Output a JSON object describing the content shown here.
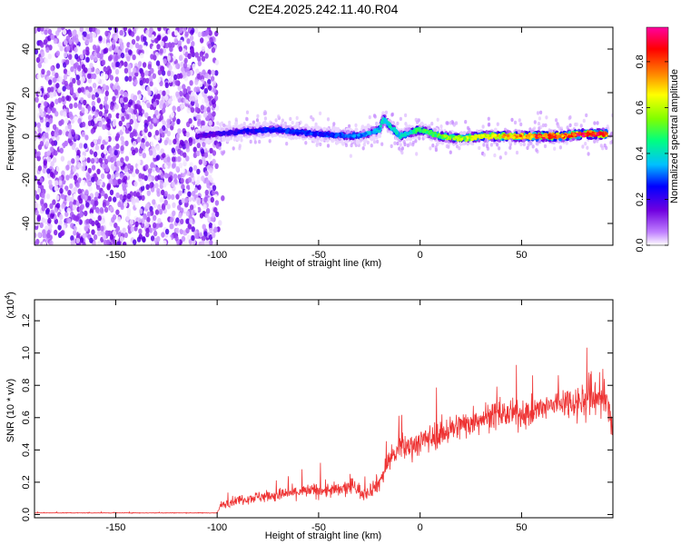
{
  "title": "C2E4.2025.242.11.40.R04",
  "chart_data": [
    {
      "type": "heatmap",
      "title": "C2E4.2025.242.11.40.R04",
      "xlabel": "Height of straight line (km)",
      "ylabel": "Frequency (Hz)",
      "xlim": [
        -190,
        95
      ],
      "ylim": [
        -50,
        50
      ],
      "xticks": [
        -150,
        -100,
        -50,
        0,
        50
      ],
      "yticks": [
        -40,
        -20,
        0,
        20,
        40
      ],
      "description_series": [
        {
          "name": "noise region",
          "x_range": [
            -190,
            -100
          ],
          "freq_range": [
            -50,
            50
          ],
          "amplitude": 0.2
        },
        {
          "name": "signal ridge",
          "x": [
            -110,
            -90,
            -70,
            -50,
            -30,
            -20,
            -18,
            -10,
            0,
            10,
            20,
            30,
            40,
            50,
            60,
            70,
            80,
            92
          ],
          "freq": [
            0,
            2,
            3,
            1,
            0,
            3,
            8,
            0,
            3,
            0,
            -1,
            0,
            0,
            0,
            0,
            0,
            1,
            1
          ],
          "amplitude": [
            0.2,
            0.25,
            0.3,
            0.3,
            0.35,
            0.4,
            0.45,
            0.4,
            0.5,
            0.55,
            0.6,
            0.65,
            0.7,
            0.75,
            0.85,
            0.8,
            0.9,
            0.8
          ]
        }
      ],
      "colorbar": {
        "label": "Normalized spectral amplitude",
        "range": [
          0.0,
          0.95
        ],
        "ticks": [
          "0.0",
          "0.2",
          "0.4",
          "0.6",
          "0.8"
        ],
        "tick_values": [
          0.0,
          0.2,
          0.4,
          0.6,
          0.8
        ],
        "colors": [
          "#ffffff",
          "#c080ff",
          "#7000e0",
          "#0000ff",
          "#00c0ff",
          "#00ff80",
          "#80ff00",
          "#ffff00",
          "#ff8000",
          "#ff0000",
          "#ff00a0"
        ]
      }
    },
    {
      "type": "line",
      "xlabel": "Height of straight line (km)",
      "ylabel": "SNR (10 * v/v)",
      "multiplier": "(x10",
      "multiplier_exp": "4",
      "multiplier_close": ")",
      "xlim": [
        -190,
        95
      ],
      "ylim": [
        -0.02,
        1.33
      ],
      "xticks": [
        -150,
        -100,
        -50,
        0,
        50
      ],
      "yticks": [
        0.0,
        0.2,
        0.4,
        0.6,
        0.8,
        1.0,
        1.2
      ],
      "ytick_labels": [
        "0.0",
        "0.2",
        "0.4",
        "0.6",
        "0.8",
        "1.0",
        "1.2"
      ],
      "series": [
        {
          "name": "SNR",
          "color": "#ee3333",
          "x": [
            -190,
            -100,
            -98,
            -90,
            -80,
            -70,
            -60,
            -50,
            -40,
            -32,
            -28,
            -20,
            -15,
            -10,
            0,
            10,
            20,
            30,
            40,
            50,
            60,
            70,
            80,
            88,
            95
          ],
          "y": [
            0.01,
            0.01,
            0.06,
            0.09,
            0.11,
            0.12,
            0.14,
            0.15,
            0.15,
            0.18,
            0.12,
            0.2,
            0.35,
            0.4,
            0.45,
            0.5,
            0.55,
            0.6,
            0.62,
            0.62,
            0.65,
            0.7,
            0.7,
            0.75,
            0.6
          ],
          "noise": [
            0.003,
            0.003,
            0.04,
            0.05,
            0.06,
            0.07,
            0.07,
            0.08,
            0.08,
            0.1,
            0.06,
            0.1,
            0.12,
            0.13,
            0.14,
            0.14,
            0.15,
            0.15,
            0.14,
            0.14,
            0.15,
            0.15,
            0.2,
            0.3,
            0.25
          ]
        }
      ]
    }
  ]
}
